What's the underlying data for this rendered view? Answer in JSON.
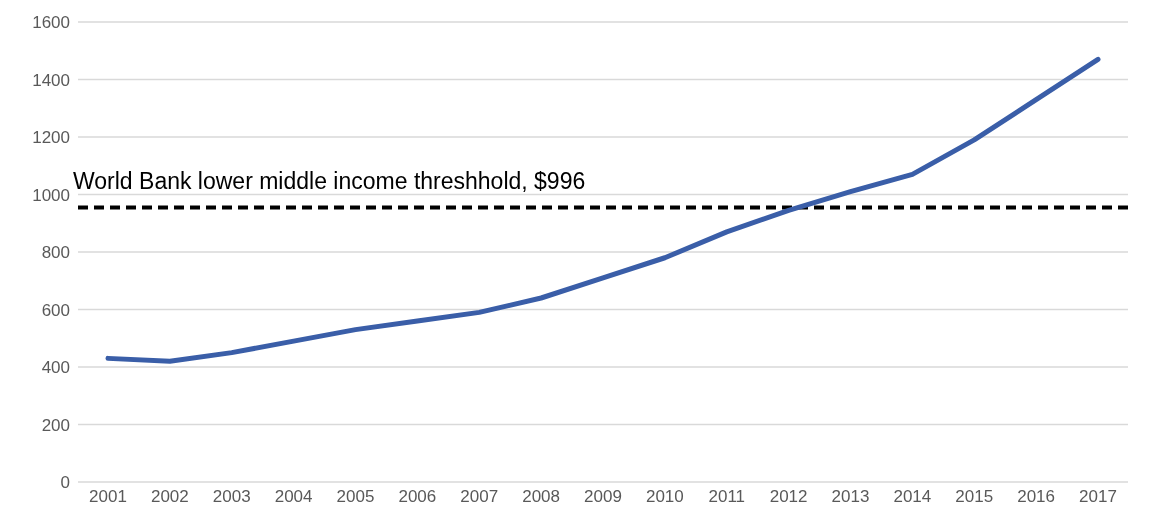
{
  "chart_data": {
    "type": "line",
    "categories": [
      "2001",
      "2002",
      "2003",
      "2004",
      "2005",
      "2006",
      "2007",
      "2008",
      "2009",
      "2010",
      "2011",
      "2012",
      "2013",
      "2014",
      "2015",
      "2016",
      "2017"
    ],
    "series": [
      {
        "color": "#3a5ea8",
        "values": [
          430,
          420,
          450,
          490,
          530,
          560,
          590,
          640,
          710,
          780,
          870,
          945,
          1010,
          1070,
          1190,
          1330,
          1470
        ]
      }
    ],
    "ylim": [
      0,
      1600
    ],
    "yticks": [
      0,
      200,
      400,
      600,
      800,
      1000,
      1200,
      1400,
      1600
    ],
    "grid": "y",
    "legend": false,
    "marker": "none",
    "line_style": "solid",
    "ref_lines": [
      {
        "axis": "y",
        "value": 955,
        "label": "World Bank lower middle income threshhold, $996",
        "color": "#000000",
        "line_style": "dashed"
      }
    ]
  }
}
